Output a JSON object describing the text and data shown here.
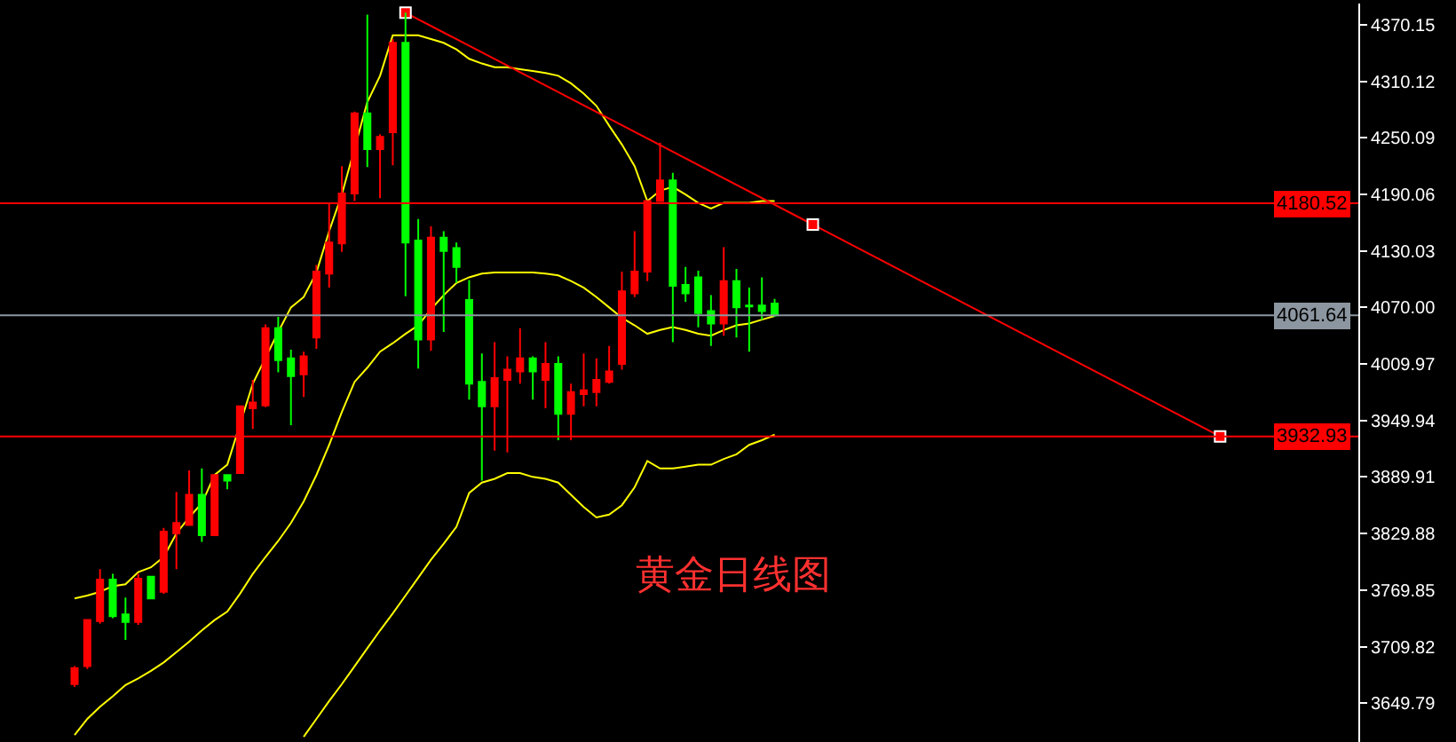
{
  "chart_data": {
    "type": "candlestick",
    "categories": [
      null,
      null,
      null,
      null,
      null,
      null,
      null,
      null,
      null,
      null,
      null,
      null,
      null,
      null,
      null,
      null,
      null,
      null,
      null,
      null,
      null,
      null,
      null,
      null,
      null,
      null,
      null,
      null,
      null,
      null,
      null,
      null,
      null,
      null,
      null,
      null,
      null,
      null,
      null,
      null,
      null,
      null,
      null,
      null,
      null,
      null,
      null,
      null,
      null,
      null,
      null,
      null,
      null,
      null,
      null,
      null,
      null,
      null,
      null,
      null,
      null,
      null,
      null,
      null,
      null,
      null,
      null,
      null,
      null,
      null,
      null,
      null,
      null,
      null,
      null,
      null,
      null,
      null,
      null,
      null,
      null,
      null,
      null,
      null,
      null,
      null,
      null,
      null,
      null,
      null,
      null,
      null,
      null,
      null,
      null,
      null
    ],
    "ohlc": [
      [
        3670,
        3689,
        3667,
        3687
      ],
      [
        3689,
        3738,
        3686,
        3738
      ],
      [
        3737,
        3792,
        3734,
        3781
      ],
      [
        3781,
        3787,
        3740,
        3742
      ],
      [
        3744,
        3762,
        3717,
        3736
      ],
      [
        3736,
        3787,
        3733,
        3782
      ],
      [
        3784,
        3785,
        3761,
        3761
      ],
      [
        3768,
        3836,
        3766,
        3832
      ],
      [
        3830,
        3874,
        3792,
        3841
      ],
      [
        3839,
        3897,
        3839,
        3871
      ],
      [
        3871,
        3899,
        3821,
        3828
      ],
      [
        3828,
        3892,
        3828,
        3892
      ],
      [
        3892,
        3892,
        3877,
        3886
      ],
      [
        3894,
        3965,
        3894,
        3965
      ],
      [
        3963,
        3993,
        3941,
        3969
      ],
      [
        3966,
        4052,
        3964,
        4048
      ],
      [
        4048,
        4060,
        4001,
        4014
      ],
      [
        4016,
        4025,
        3945,
        3997
      ],
      [
        3999,
        4023,
        3975,
        4018
      ],
      [
        4038,
        4115,
        4026,
        4108
      ],
      [
        4106,
        4180,
        4091,
        4139
      ],
      [
        4138,
        4220,
        4129,
        4191
      ],
      [
        4191,
        4278,
        4183,
        4276
      ],
      [
        4276,
        4381,
        4219,
        4238
      ],
      [
        4238,
        4254,
        4186,
        4251
      ],
      [
        4256,
        4355,
        4221,
        4351
      ],
      [
        4351,
        4383,
        4082,
        4139
      ],
      [
        4141,
        4164,
        4005,
        4036
      ],
      [
        4036,
        4156,
        4024,
        4144
      ],
      [
        4144,
        4151,
        4044,
        4130
      ],
      [
        4133,
        4139,
        4096,
        4113
      ],
      [
        4078,
        4099,
        3972,
        3989
      ],
      [
        3991,
        4021,
        3886,
        3965
      ],
      [
        3965,
        4033,
        3918,
        3995
      ],
      [
        3993,
        4018,
        3916,
        4004
      ],
      [
        4002,
        4048,
        3989,
        4016
      ],
      [
        4016,
        4018,
        3972,
        4002
      ],
      [
        3993,
        4033,
        3963,
        4010
      ],
      [
        4010,
        4018,
        3929,
        3957
      ],
      [
        3957,
        3989,
        3929,
        3980
      ],
      [
        3978,
        4021,
        3965,
        3982
      ],
      [
        3980,
        4016,
        3965,
        3993
      ],
      [
        3991,
        4029,
        3989,
        4002
      ],
      [
        4010,
        4108,
        4004,
        4087
      ],
      [
        4085,
        4151,
        4081,
        4108
      ],
      [
        4108,
        4183,
        4098,
        4183
      ],
      [
        4183,
        4245,
        4183,
        4205
      ],
      [
        4205,
        4213,
        4033,
        4093
      ],
      [
        4094,
        4113,
        4076,
        4085
      ],
      [
        4102,
        4109,
        4049,
        4064
      ],
      [
        4066,
        4083,
        4029,
        4053
      ],
      [
        4053,
        4134,
        4040,
        4098
      ],
      [
        4098,
        4111,
        4038,
        4070
      ],
      [
        4072,
        4091,
        4023,
        4071
      ],
      [
        4072,
        4102,
        4057,
        4066
      ],
      [
        4074,
        4079,
        4060,
        4061.64
      ],
      null,
      null,
      null,
      null,
      null,
      null,
      null,
      null,
      null,
      null,
      null,
      null,
      null,
      null,
      null,
      null,
      null,
      null,
      null,
      null,
      null,
      null,
      null,
      null,
      null,
      null,
      null,
      null,
      null,
      null,
      null,
      null,
      null,
      null,
      null,
      null,
      null,
      null,
      null,
      null
    ],
    "colors": [
      "#ff0000",
      "#ff0000",
      "#ff0000",
      "#00ff00",
      "#00ff00",
      "#ff0000",
      "#00ff00",
      "#ff0000",
      "#ff0000",
      "#ff0000",
      "#00ff00",
      "#ff0000",
      "#00ff00",
      "#ff0000",
      "#ff0000",
      "#ff0000",
      "#00ff00",
      "#00ff00",
      "#ff0000",
      "#ff0000",
      "#ff0000",
      "#ff0000",
      "#ff0000",
      "#00ff00",
      "#ff0000",
      "#ff0000",
      "#00ff00",
      "#00ff00",
      "#ff0000",
      "#00ff00",
      "#00ff00",
      "#00ff00",
      "#00ff00",
      "#ff0000",
      "#ff0000",
      "#ff0000",
      "#00ff00",
      "#ff0000",
      "#00ff00",
      "#ff0000",
      "#ff0000",
      "#ff0000",
      "#ff0000",
      "#ff0000",
      "#ff0000",
      "#ff0000",
      "#ff0000",
      "#00ff00",
      "#00ff00",
      "#00ff00",
      "#00ff00",
      "#ff0000",
      "#00ff00",
      "#00ff00",
      "#00ff00",
      "#00ff00",
      null,
      null,
      null,
      null,
      null,
      null,
      null,
      null,
      null,
      null,
      null,
      null,
      null,
      null,
      null,
      null,
      null,
      null,
      null,
      null,
      null,
      null,
      null,
      null,
      null,
      null,
      null,
      null,
      null,
      null,
      null,
      null,
      null,
      null,
      null,
      null,
      null,
      null,
      null,
      null
    ],
    "series": [
      {
        "type": "line",
        "color": "#ffff00",
        "marker": "none",
        "values": [
          3761,
          3764,
          3768,
          3774,
          3776,
          3789,
          3794,
          3805,
          3830,
          3847,
          3862,
          3892,
          3903,
          null,
          3989,
          null,
          4044,
          4070,
          4081,
          4107,
          4151,
          4190,
          null,
          4288,
          4316,
          4359,
          4359,
          4359,
          4355,
          4351,
          4344,
          4334,
          4329,
          4325,
          4325,
          4323,
          4321,
          4319,
          4316,
          4308,
          4297,
          4284,
          4263,
          4243,
          4220,
          4183,
          4194,
          4198,
          4190,
          4181,
          4175,
          4181,
          4181,
          4181,
          4183,
          4183,
          null,
          null,
          null,
          null,
          null,
          null,
          null,
          null,
          null,
          null,
          null,
          null,
          null,
          null,
          null,
          null,
          null,
          null,
          null,
          null,
          null,
          null,
          null,
          null,
          null,
          null,
          null,
          null,
          null,
          null,
          null,
          null,
          null,
          null,
          null,
          null,
          null,
          null,
          null,
          null
        ]
      },
      {
        "type": "line",
        "color": "#ffff00",
        "marker": "none",
        "values": [
          3616,
          3633,
          3646,
          3657,
          3669,
          3676,
          3684,
          3693,
          3704,
          3715,
          3727,
          3738,
          3747,
          3766,
          3787,
          3805,
          3822,
          3841,
          3864,
          3892,
          3924,
          3959,
          3991,
          4006,
          4023,
          4032,
          4042,
          4051,
          4068,
          4083,
          4096,
          4102,
          4106,
          4107,
          4107,
          4107,
          4107,
          4106,
          4104,
          4098,
          4091,
          4081,
          4070,
          4059,
          4051,
          4042,
          4046,
          4049,
          4046,
          4042,
          4040,
          4046,
          4051,
          4053,
          4057,
          4061,
          null,
          null,
          null,
          null,
          null,
          null,
          null,
          null,
          null,
          null,
          null,
          null,
          null,
          null,
          null,
          null,
          null,
          null,
          null,
          null,
          null,
          null,
          null,
          null,
          null,
          null,
          null,
          null,
          null,
          null,
          null,
          null,
          null,
          null,
          null,
          null,
          null,
          null,
          null,
          null
        ]
      },
      {
        "type": "line",
        "color": "#ffff00",
        "marker": "none",
        "values": [
          null,
          null,
          null,
          null,
          null,
          null,
          null,
          null,
          null,
          null,
          null,
          null,
          null,
          null,
          null,
          null,
          null,
          null,
          3614,
          3633,
          3652,
          3670,
          3689,
          3708,
          3727,
          3745,
          3764,
          3783,
          3802,
          3819,
          3837,
          3873,
          3884,
          3888,
          3894,
          3894,
          3890,
          3888,
          3884,
          3871,
          3858,
          3847,
          3850,
          3860,
          3879,
          3907,
          3899,
          3899,
          3901,
          3903,
          3903,
          3909,
          3914,
          3924,
          3929,
          3935,
          null,
          null,
          null,
          null,
          null,
          null,
          null,
          null,
          null,
          null,
          null,
          null,
          null,
          null,
          null,
          null,
          null,
          null,
          null,
          null,
          null,
          null,
          null,
          null,
          null,
          null,
          null,
          null,
          null,
          null,
          null,
          null,
          null,
          null,
          null,
          null,
          null,
          null,
          null,
          null
        ]
      },
      {
        "type": "line",
        "color": "#ff0000",
        "marker": "square",
        "values": [
          null,
          null,
          null,
          null,
          null,
          null,
          null,
          null,
          null,
          null,
          null,
          null,
          null,
          null,
          null,
          null,
          null,
          null,
          null,
          null,
          null,
          null,
          null,
          null,
          null,
          null,
          4383,
          null,
          null,
          null,
          null,
          null,
          null,
          null,
          null,
          null,
          null,
          null,
          null,
          null,
          null,
          null,
          null,
          null,
          null,
          null,
          null,
          null,
          null,
          null,
          null,
          null,
          null,
          null,
          null,
          null,
          null,
          null,
          4158,
          null,
          null,
          null,
          null,
          null,
          null,
          null,
          null,
          null,
          null,
          null,
          null,
          null,
          null,
          null,
          null,
          null,
          null,
          null,
          null,
          null,
          null,
          null,
          null,
          null,
          null,
          null,
          null,
          null,
          null,
          null,
          3933,
          null,
          null,
          null,
          null,
          null
        ]
      }
    ],
    "ylim": [
      3608.5,
      4392.7
    ],
    "yticks": [
      3649.79,
      3709.82,
      3769.85,
      3829.88,
      3889.91,
      3949.94,
      4009.97,
      {
        "value": 4070,
        "label": "4070.00"
      },
      4130.03,
      4190.06,
      4250.09,
      4310.12,
      4370.15
    ],
    "ref_lines": [
      {
        "axis": "y",
        "value": 4180.52,
        "label": "4180.52",
        "color": "#ff0000"
      },
      {
        "axis": "y",
        "value": 4061.64,
        "label": "4061.64",
        "color": "#8c96a0"
      },
      {
        "axis": "y",
        "value": 3932.93,
        "label": "3932.93",
        "color": "#ff0000"
      }
    ],
    "annotations": [
      "黄金日线图"
    ],
    "tick_labels": "y",
    "grid": false,
    "line_style": "solid"
  }
}
